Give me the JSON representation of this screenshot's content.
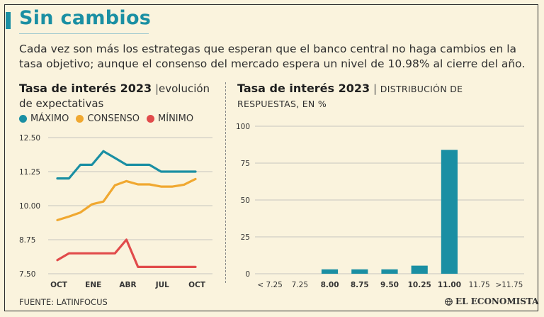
{
  "header": {
    "title": "Sin cambios",
    "subtitle": "Cada vez son más los estrategas que esperan que el banco central no haga cambios en la tasa objetivo; aunque el consenso del mercado espera un nivel de 10.98% al cierre del año."
  },
  "left_chart": {
    "title_bold": "Tasa de interés 2023",
    "title_sep": "|",
    "title_rest": "evolución de expectativas",
    "legend": [
      {
        "label": "MÁXIMO",
        "color": "#1a8fa3"
      },
      {
        "label": "CONSENSO",
        "color": "#f0a830"
      },
      {
        "label": "MÍNIMO",
        "color": "#e14b4b"
      }
    ]
  },
  "right_chart": {
    "title_bold": "Tasa de interés 2023",
    "title_sep": "|",
    "title_rest": "DISTRIBUCIÓN DE RESPUESTAS, EN %"
  },
  "chart_data": [
    {
      "type": "line",
      "title": "Tasa de interés 2023 | evolución de expectativas",
      "x_tick_labels": [
        "OCT",
        "ENE",
        "ABR",
        "JUL",
        "OCT"
      ],
      "y_tick_labels": [
        "12.50",
        "11.25",
        "10.00",
        "8.75",
        "7.50"
      ],
      "ylim": [
        7.5,
        12.5
      ],
      "series": [
        {
          "name": "MÁXIMO",
          "color": "#1a8fa3",
          "values": [
            11.0,
            11.0,
            11.5,
            11.5,
            12.0,
            11.75,
            11.5,
            11.5,
            11.5,
            11.25,
            11.25,
            11.25,
            11.25
          ]
        },
        {
          "name": "CONSENSO",
          "color": "#f0a830",
          "values": [
            9.47,
            9.6,
            9.75,
            10.05,
            10.15,
            10.75,
            10.9,
            10.78,
            10.78,
            10.7,
            10.7,
            10.77,
            10.98
          ]
        },
        {
          "name": "MÍNIMO",
          "color": "#e14b4b",
          "values": [
            8.0,
            8.25,
            8.25,
            8.25,
            8.25,
            8.25,
            8.75,
            7.75,
            7.75,
            7.75,
            7.75,
            7.75,
            7.75
          ]
        }
      ]
    },
    {
      "type": "bar",
      "title": "Tasa de interés 2023 | DISTRIBUCIÓN DE RESPUESTAS, EN %",
      "categories": [
        "< 7.25",
        "7.25",
        "8.00",
        "8.75",
        "9.50",
        "10.25",
        "11.00",
        "11.75",
        ">11.75"
      ],
      "bold_categories": [
        "8.00",
        "8.75",
        "9.50",
        "10.25",
        "11.00"
      ],
      "values": [
        0,
        0,
        3,
        3,
        3,
        5.5,
        84,
        0,
        0
      ],
      "ylim": [
        0,
        100
      ],
      "y_ticks": [
        0,
        25,
        50,
        75,
        100
      ],
      "y_tick_labels": [
        "0",
        "25",
        "50",
        "75",
        "100"
      ],
      "color": "#1a8fa3"
    }
  ],
  "footer": {
    "source": "FUENTE: LATINFOCUS",
    "brand": "EL ECONOMISTA"
  }
}
